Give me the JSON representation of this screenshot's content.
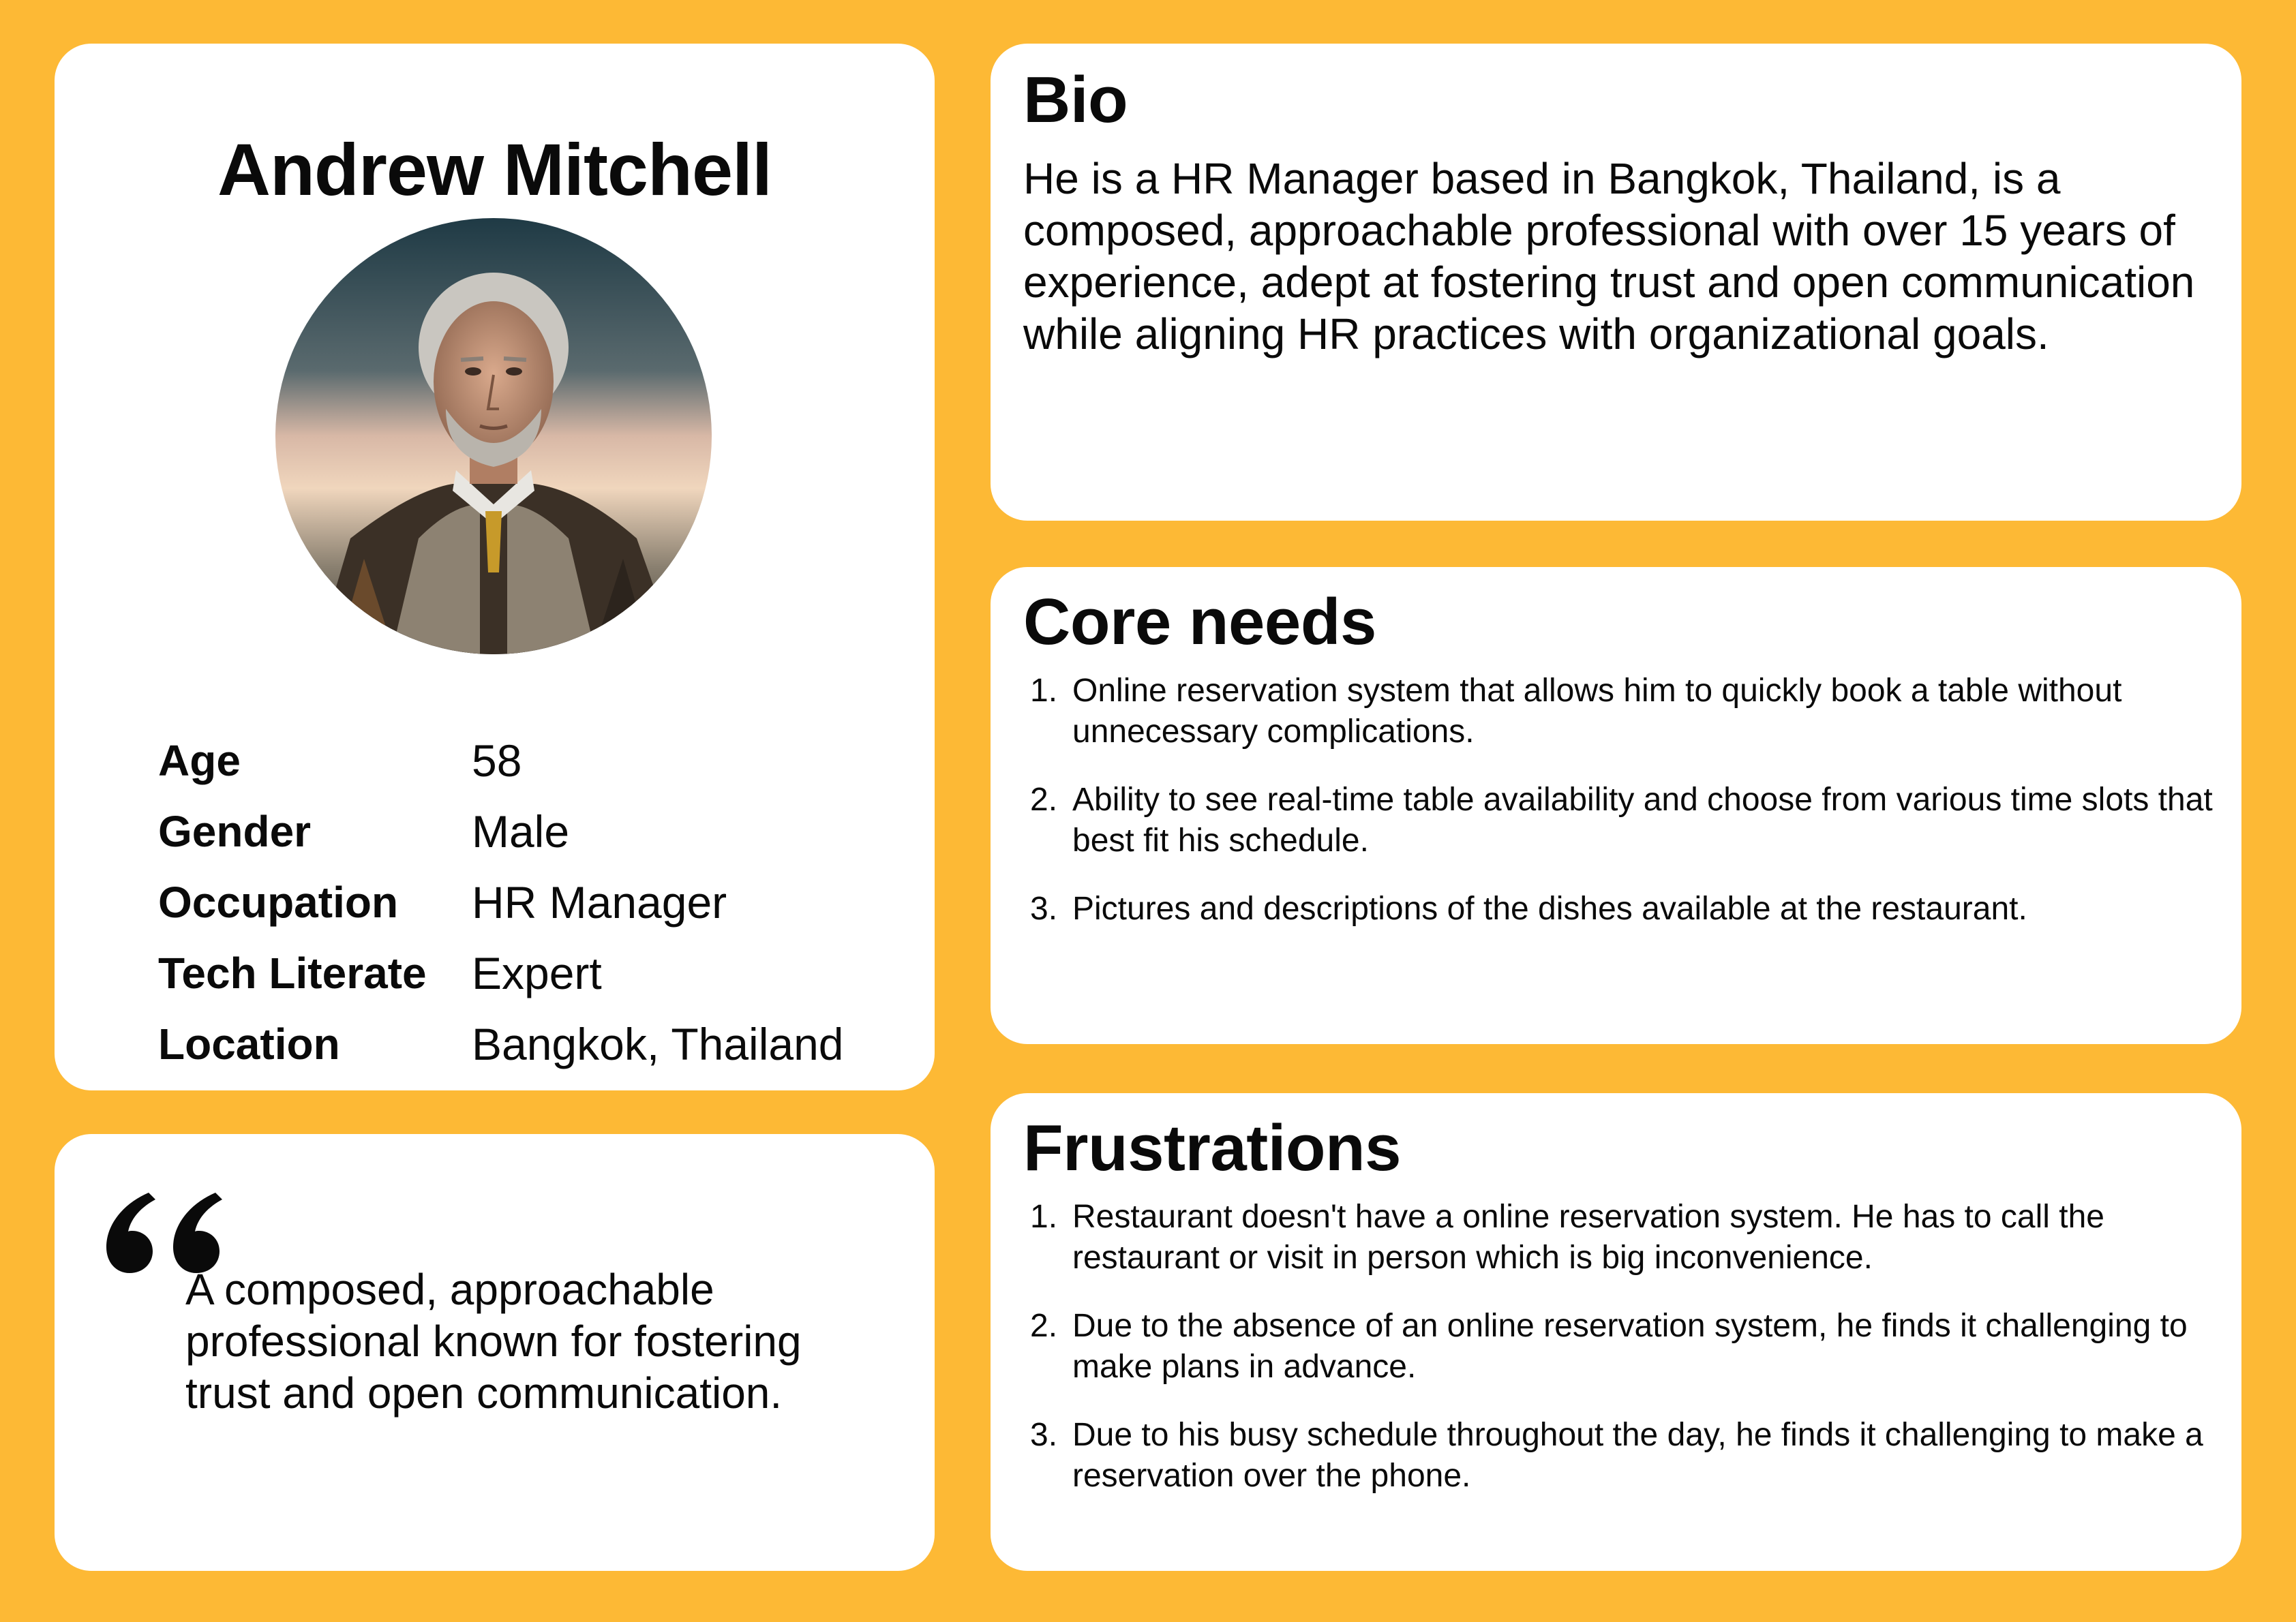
{
  "profile": {
    "name": "Andrew Mitchell",
    "avatar": "portrait-photo",
    "attributes": [
      {
        "label": "Age",
        "value": "58"
      },
      {
        "label": "Gender",
        "value": "Male"
      },
      {
        "label": "Occupation",
        "value": "HR Manager"
      },
      {
        "label": "Tech Literate",
        "value": "Expert"
      },
      {
        "label": "Location",
        "value": "Bangkok, Thailand"
      }
    ]
  },
  "quote": {
    "icon": "quote-mark-icon",
    "text": "A composed, approachable professional known for fostering trust and open communication."
  },
  "bio": {
    "title": "Bio",
    "text": "He is a HR Manager based in Bangkok, Thailand, is a composed, approachable professional with over 15 years of experience, adept at fostering trust and open communication while aligning HR practices with organizational goals."
  },
  "core_needs": {
    "title": "Core needs",
    "items": [
      {
        "num": "1.",
        "text": "Online reservation system that allows him to quickly book a table without unnecessary complications."
      },
      {
        "num": "2.",
        "text": "Ability to see real-time table availability and choose from various time slots that best fit his schedule."
      },
      {
        "num": "3.",
        "text": "Pictures and descriptions of the dishes available at the restaurant."
      }
    ]
  },
  "frustrations": {
    "title": "Frustrations",
    "items": [
      {
        "num": "1.",
        "text": "Restaurant doesn't have a online reservation system. He has to call the restaurant or visit in person which is big inconvenience."
      },
      {
        "num": "2.",
        "text": "Due to the absence of an online reservation system, he finds it challenging to make plans in advance."
      },
      {
        "num": "3.",
        "text": "Due to his busy schedule throughout the day, he finds it challenging to make a reservation over the phone."
      }
    ]
  },
  "colors": {
    "background": "#FDB935",
    "card": "#FFFFFF",
    "text": "#0A0A0A"
  }
}
